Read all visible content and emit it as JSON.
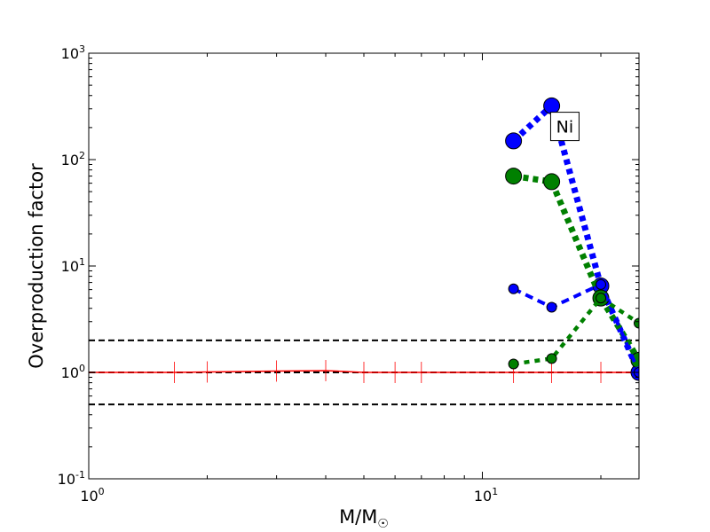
{
  "chart_data": {
    "type": "line",
    "xscale": "log",
    "yscale": "log",
    "xlim": [
      1,
      25
    ],
    "ylim": [
      0.1,
      1000
    ],
    "xlabel": "M/M",
    "xlabel_symbol": "☉",
    "ylabel": "Overproduction factor",
    "x_ticks": [
      {
        "value": 1,
        "base": "10",
        "exp": "0"
      },
      {
        "value": 10,
        "base": "10",
        "exp": "1"
      }
    ],
    "y_ticks": [
      {
        "value": 0.1,
        "base": "10",
        "exp": "-1"
      },
      {
        "value": 1,
        "base": "10",
        "exp": "0"
      },
      {
        "value": 10,
        "base": "10",
        "exp": "1"
      },
      {
        "value": 100,
        "base": "10",
        "exp": "2"
      },
      {
        "value": 1000,
        "base": "10",
        "exp": "3"
      }
    ],
    "reference_lines": [
      {
        "y": 2,
        "color": "#000000",
        "style": "dashed"
      },
      {
        "y": 1,
        "color": "#000000",
        "style": "dashed"
      },
      {
        "y": 0.5,
        "color": "#000000",
        "style": "dashed"
      }
    ],
    "series": [
      {
        "color": "#ff0000",
        "style": "solid-with-ticks",
        "x": [
          1,
          1.65,
          2,
          3,
          4,
          5,
          6,
          7,
          12,
          15,
          20,
          25
        ],
        "y": [
          1.0,
          1.0,
          1.01,
          1.03,
          1.04,
          1.0,
          1.0,
          1.0,
          1.0,
          1.0,
          1.0,
          1.0
        ]
      },
      {
        "color": "#0000ff",
        "style": "thick-dotted",
        "marker": "large",
        "x": [
          12,
          15,
          20,
          25
        ],
        "y": [
          150,
          320,
          6.5,
          1.0
        ]
      },
      {
        "color": "#008000",
        "style": "thick-dotted",
        "marker": "large",
        "x": [
          12,
          15,
          20,
          25
        ],
        "y": [
          70,
          62,
          5.0,
          1.3
        ]
      },
      {
        "color": "#0000ff",
        "style": "dashed",
        "marker": "small",
        "x": [
          12,
          15,
          20,
          25
        ],
        "y": [
          6.1,
          4.1,
          6.7,
          1.0
        ]
      },
      {
        "color": "#008000",
        "style": "dotted",
        "marker": "small",
        "x": [
          12,
          15,
          20,
          25
        ],
        "y": [
          1.2,
          1.35,
          5.0,
          2.9
        ]
      }
    ],
    "annotations": [
      {
        "text": "Ni",
        "x": 16.2,
        "y": 205
      }
    ]
  }
}
